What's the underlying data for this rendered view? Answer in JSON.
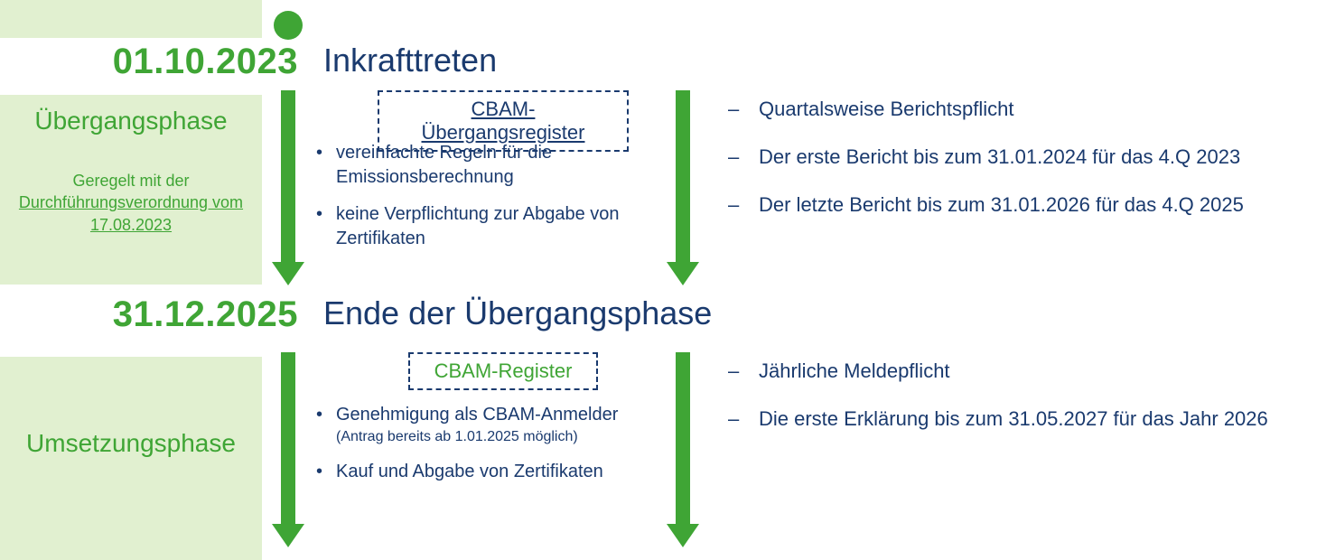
{
  "colors": {
    "green": "#3fa535",
    "lightgreen": "#e1f0d0",
    "navy": "#1a3a6e",
    "white": "#ffffff"
  },
  "timeline": {
    "date1": "01.10.2023",
    "date2": "31.12.2025",
    "phase1_label": "Übergangsphase",
    "phase2_label": "Umsetzungsphase",
    "regulated_prefix": "Geregelt mit der",
    "regulated_link": "Durchführungsverordnung vom 17.08.2023"
  },
  "section1": {
    "title": "Inkrafttreten",
    "box_link": "CBAM-Übergangsregister",
    "bullets": [
      "vereinfachte Regeln für die Emissionsberechnung",
      "keine Verpflichtung zur Abgabe von Zertifikaten"
    ],
    "dashes": [
      "Quartalsweise Berichtspflicht",
      "Der erste Bericht bis zum 31.01.2024 für das 4.Q 2023",
      "Der letzte Bericht bis zum 31.01.2026 für das 4.Q 2025"
    ]
  },
  "section2": {
    "title": "Ende der Übergangsphase",
    "box_label": "CBAM-Register",
    "bullets_main0": "Genehmigung als CBAM-Anmelder",
    "bullets_sub0": "(Antrag bereits ab 1.01.2025 möglich)",
    "bullets_main1": "Kauf und Abgabe von Zertifikaten",
    "dashes": [
      "Jährliche Meldepflicht",
      "Die erste Erklärung bis zum 31.05.2027 für das Jahr 2026"
    ]
  }
}
